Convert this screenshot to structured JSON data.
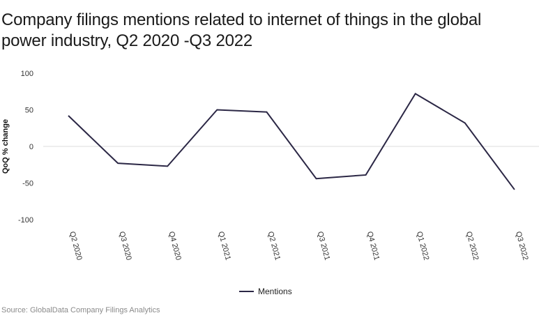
{
  "title": "Company filings mentions related to internet of things in the global power industry, Q2 2020 -Q3 2022",
  "source": "Source: GlobalData Company Filings Analytics",
  "colors": {
    "line": "#2b2745",
    "zero_line": "#dddddd"
  },
  "chart_data": {
    "type": "line",
    "categories": [
      "Q2 2020",
      "Q3 2020",
      "Q4 2020",
      "Q1 2021",
      "Q2 2021",
      "Q3 2021",
      "Q4 2021",
      "Q1 2022",
      "Q2 2022",
      "Q3 2022"
    ],
    "series": [
      {
        "name": "Mentions",
        "values": [
          42,
          -23,
          -27,
          50,
          47,
          -44,
          -39,
          72,
          32,
          -59
        ]
      }
    ],
    "ylabel": "QoQ % change",
    "xlabel": "",
    "ylim": [
      -100,
      100
    ],
    "yticks": [
      100,
      50,
      0,
      -50,
      -100
    ],
    "legend_position": "bottom-center",
    "grid": false
  }
}
